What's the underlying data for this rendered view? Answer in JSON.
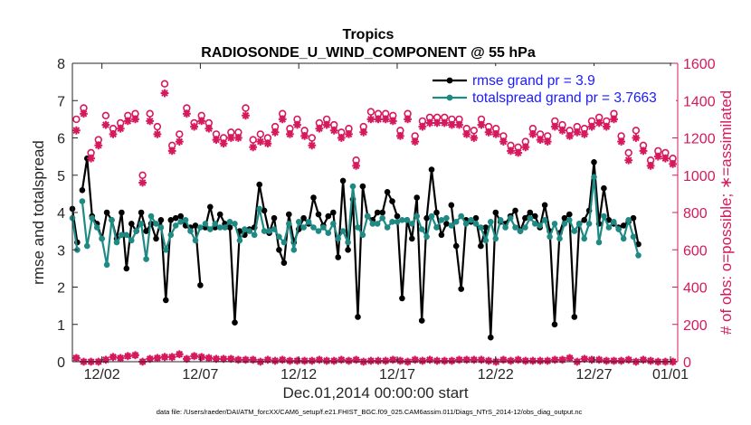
{
  "chart_data": {
    "type": "line",
    "title": "Tropics",
    "subtitle": "RADIOSONDE_U_WIND_COMPONENT @ 55 hPa",
    "xlabel": "Dec.01,2014 00:00:00 start",
    "ylabel": "rmse and totalspread",
    "ylabel_right": "# of obs: o=possible; ∗=assimilated",
    "footnote": "data file: /Users/raeder/DAI/ATM_forcXX/CAM6_setup/f.e21.FHIST_BGC.f09_025.CAM6assim.011/Diags_NTrS_2014-12/obs_diag_output.nc",
    "x_range": [
      0.5,
      31.25
    ],
    "x_unit": "days since Dec.01,2014 00:00",
    "xticks": [
      {
        "v": 2,
        "label": "12/02"
      },
      {
        "v": 7,
        "label": "12/07"
      },
      {
        "v": 12,
        "label": "12/12"
      },
      {
        "v": 17,
        "label": "12/17"
      },
      {
        "v": 22,
        "label": "12/22"
      },
      {
        "v": 27,
        "label": "12/27"
      },
      {
        "v": 32,
        "label": "01/01"
      }
    ],
    "ylim": [
      0,
      8
    ],
    "yticks": [
      "0",
      "1",
      "2",
      "3",
      "4",
      "5",
      "6",
      "7",
      "8"
    ],
    "ylim_right": [
      0,
      1600
    ],
    "yticks_right": [
      "0",
      "200",
      "400",
      "600",
      "800",
      "1000",
      "1200",
      "1400",
      "1600"
    ],
    "legend": [
      {
        "label": "rmse grand pr = 3.9",
        "color": "#000000"
      },
      {
        "label": "totalspread grand pr = 3.7663",
        "color": "#1f8a84"
      }
    ],
    "x_start": 0.5,
    "x_step": 0.25,
    "series": [
      {
        "name": "rmse",
        "color": "#000000",
        "values": [
          4.1,
          3.2,
          4.6,
          5.45,
          3.9,
          3.7,
          3.3,
          4.0,
          3.8,
          3.3,
          4.0,
          2.5,
          3.7,
          3.5,
          4.0,
          3.5,
          3.7,
          3.3,
          3.8,
          1.65,
          3.8,
          3.85,
          3.9,
          3.65,
          3.6,
          3.65,
          2.05,
          3.6,
          4.15,
          3.6,
          3.95,
          3.7,
          3.6,
          1.05,
          3.5,
          3.4,
          3.55,
          3.6,
          4.75,
          4.05,
          3.45,
          3.85,
          3.0,
          2.65,
          3.95,
          3.2,
          3.55,
          3.85,
          3.7,
          4.4,
          3.95,
          3.65,
          3.9,
          4.0,
          2.8,
          4.85,
          3.0,
          4.35,
          1.2,
          4.7,
          3.9,
          3.8,
          4.0,
          4.0,
          4.55,
          4.3,
          3.9,
          1.7,
          3.8,
          3.3,
          4.4,
          1.1,
          3.85,
          5.15,
          4.0,
          3.4,
          3.7,
          4.2,
          3.1,
          1.95,
          3.8,
          3.75,
          3.85,
          3.1,
          3.6,
          0.65,
          4.0,
          3.75,
          3.7,
          3.9,
          4.05,
          3.5,
          3.85,
          4.0,
          3.9,
          3.6,
          4.2,
          3.5,
          1.0,
          3.45,
          3.85,
          3.95,
          1.2,
          3.7,
          3.8,
          4.05,
          5.35,
          3.7,
          4.65,
          3.8,
          3.7,
          3.6,
          3.65,
          3.75,
          3.85,
          3.15
        ],
        "gaps_after": [
          1,
          26,
          76
        ]
      },
      {
        "name": "totalspread",
        "color": "#1f8a84",
        "values": [
          3.85,
          3.0,
          4.3,
          3.1,
          3.85,
          3.6,
          3.3,
          2.6,
          3.8,
          3.2,
          3.4,
          3.4,
          3.25,
          3.5,
          3.7,
          2.75,
          3.9,
          3.7,
          3.6,
          3.0,
          3.4,
          3.65,
          3.75,
          3.8,
          3.5,
          3.25,
          3.6,
          3.7,
          3.55,
          3.7,
          3.6,
          3.6,
          3.75,
          3.7,
          3.25,
          3.55,
          3.5,
          3.4,
          4.1,
          3.5,
          3.5,
          3.55,
          3.35,
          3.2,
          3.7,
          3.0,
          3.75,
          3.6,
          3.75,
          3.6,
          3.5,
          3.6,
          3.45,
          3.7,
          3.3,
          3.5,
          3.2,
          4.7,
          3.6,
          3.4,
          3.9,
          3.7,
          3.7,
          3.85,
          3.6,
          3.75,
          3.75,
          3.8,
          3.8,
          3.7,
          3.9,
          3.55,
          3.35,
          3.9,
          3.6,
          3.8,
          3.85,
          3.65,
          3.75,
          3.9,
          3.7,
          3.8,
          3.7,
          3.6,
          3.25,
          3.75,
          3.3,
          3.8,
          3.6,
          3.85,
          3.6,
          3.5,
          3.6,
          3.85,
          3.7,
          3.65,
          3.8,
          3.35,
          3.7,
          3.3,
          3.7,
          3.8,
          3.5,
          3.7,
          3.3,
          3.7,
          4.95,
          3.2,
          3.9,
          3.6,
          3.75,
          3.55,
          3.3,
          3.8,
          3.35,
          2.85
        ],
        "gaps_after": [
          1,
          26,
          76
        ]
      },
      {
        "name": "obs possible",
        "axis": "right",
        "marker": "o",
        "color": "#d6185c",
        "values": [
          1300,
          1360,
          1120,
          1190,
          1320,
          1250,
          1280,
          1320,
          1330,
          1000,
          1330,
          1260,
          1490,
          1160,
          1220,
          1360,
          1280,
          1320,
          1280,
          1220,
          1200,
          1230,
          1230,
          1360,
          1190,
          1220,
          1200,
          1260,
          1330,
          1250,
          1300,
          1240,
          1200,
          1280,
          1300,
          1270,
          1230,
          1250,
          1080,
          1260,
          1340,
          1330,
          1330,
          1320,
          1240,
          1330,
          1210,
          1290,
          1310,
          1310,
          1310,
          1300,
          1300,
          1250,
          1240,
          1300,
          1260,
          1250,
          1210,
          1160,
          1150,
          1180,
          1250,
          1220,
          1210,
          1290,
          1270,
          1240,
          1260,
          1250,
          1290,
          1310,
          1290,
          1330,
          1210,
          1120,
          1240,
          1160,
          1080,
          1130,
          1120,
          1090
        ],
        "gaps_after": []
      },
      {
        "name": "obs assimilated",
        "axis": "right",
        "marker": "*",
        "color": "#d6185c",
        "values": [
          20,
          -10,
          -10,
          -10,
          10,
          25,
          20,
          30,
          35,
          -15,
          15,
          20,
          25,
          25,
          40,
          15,
          30,
          25,
          20,
          15,
          15,
          15,
          10,
          10,
          10,
          -10,
          10,
          5,
          10,
          5,
          5,
          5,
          5,
          10,
          5,
          5,
          10,
          5,
          10,
          -10,
          5,
          5,
          5,
          10,
          5,
          -10,
          10,
          5,
          10,
          5,
          5,
          5,
          10,
          10,
          10,
          10,
          5,
          -15,
          10,
          5,
          10,
          5,
          5,
          5,
          5,
          10,
          10,
          20,
          -15,
          15,
          10,
          10,
          5,
          5,
          5,
          10,
          -10,
          10,
          5,
          -15,
          -15,
          -15
        ],
        "gaps_after": [],
        "values_assim": [
          1240,
          1330,
          1090,
          1160,
          1270,
          1220,
          1250,
          1290,
          1300,
          960,
          1290,
          1220,
          1440,
          1130,
          1180,
          1330,
          1260,
          1290,
          1250,
          1190,
          1170,
          1200,
          1200,
          1320,
          1150,
          1180,
          1170,
          1230,
          1300,
          1220,
          1270,
          1210,
          1160,
          1250,
          1270,
          1240,
          1200,
          1220,
          1050,
          1230,
          1300,
          1300,
          1300,
          1290,
          1210,
          1300,
          1180,
          1260,
          1280,
          1280,
          1280,
          1270,
          1270,
          1220,
          1200,
          1270,
          1230,
          1220,
          1180,
          1130,
          1120,
          1150,
          1220,
          1190,
          1180,
          1260,
          1240,
          1210,
          1230,
          1220,
          1260,
          1280,
          1260,
          1300,
          1180,
          1080,
          1200,
          1130,
          1050,
          1100,
          1090,
          1060
        ]
      }
    ]
  }
}
